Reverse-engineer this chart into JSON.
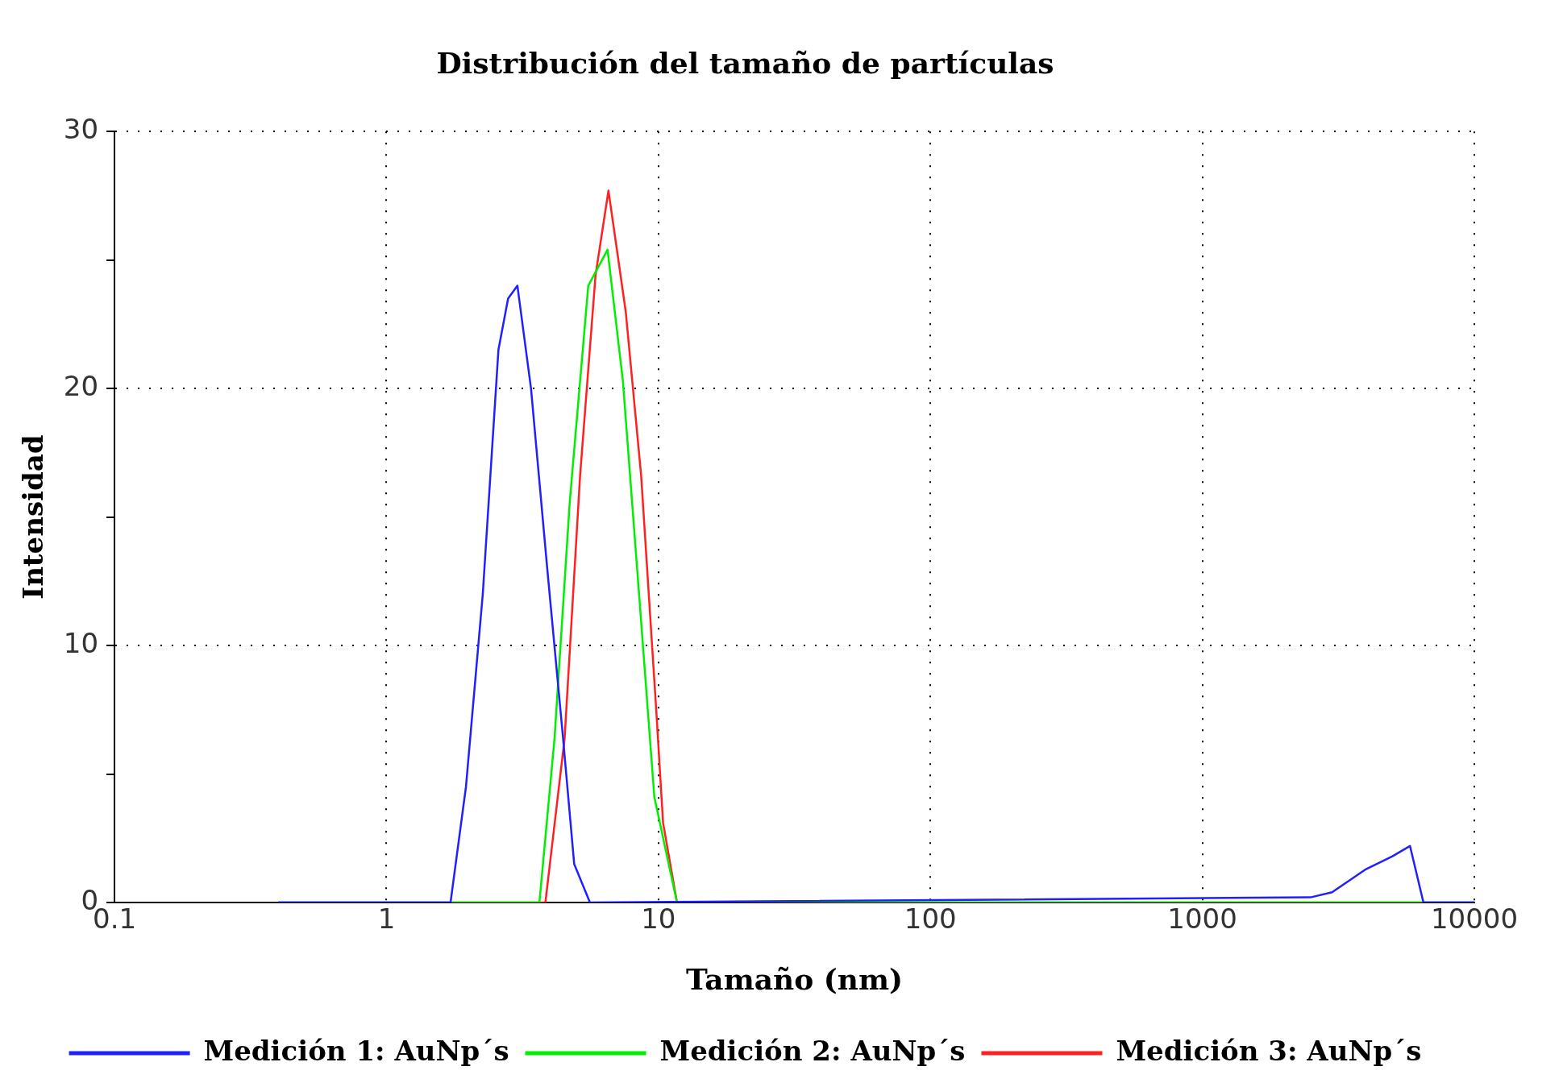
{
  "chart_data": {
    "type": "line",
    "title": "Distribución del tamaño de partículas",
    "xlabel": "Tamaño (nm)",
    "ylabel": "Intensidad",
    "log": "x",
    "grid": true,
    "legend": "bottom",
    "marker": "none",
    "line_style": "solid",
    "xlim": [
      0.1,
      10000
    ],
    "xticks": [
      0.1,
      1,
      10,
      100,
      1000,
      10000
    ],
    "ylim": [
      0,
      30
    ],
    "yticks": [
      0,
      {
        "value": 5,
        "label": null
      },
      10,
      {
        "value": 15,
        "label": null
      },
      20,
      {
        "value": 25,
        "label": null
      },
      30
    ],
    "series": [
      {
        "name": "Medición 1: AuNp´s",
        "color": "#2020ff",
        "x": [
          0.4,
          1.72,
          1.96,
          2.26,
          2.58,
          2.8,
          3.03,
          3.4,
          3.9,
          4.45,
          4.9,
          5.6,
          2500,
          3000,
          4000,
          5000,
          5800,
          6500,
          10000
        ],
        "values": [
          0,
          0,
          4.5,
          12,
          21.5,
          23.5,
          24,
          20,
          13,
          6.5,
          1.5,
          0,
          0.2,
          0.4,
          1.3,
          1.8,
          2.2,
          0,
          0
        ]
      },
      {
        "name": "Medición 2: AuNp´s",
        "color": "#00ee00",
        "x": [
          0.4,
          3.65,
          4.15,
          4.72,
          5.52,
          6.5,
          7.4,
          8.5,
          9.66,
          11.7,
          10000
        ],
        "values": [
          0,
          0,
          6.4,
          15.6,
          24,
          25.4,
          20.3,
          11.9,
          4.1,
          0,
          0
        ]
      },
      {
        "name": "Medición 3: AuNp´s",
        "color": "#ff2020",
        "x": [
          0.4,
          3.84,
          4.52,
          5.15,
          5.87,
          6.55,
          7.58,
          8.64,
          9.84,
          10.4,
          11.7,
          10000
        ],
        "values": [
          0,
          0,
          6.4,
          16.6,
          24.4,
          27.7,
          23,
          16.6,
          7.3,
          3.1,
          0,
          0
        ]
      }
    ]
  }
}
